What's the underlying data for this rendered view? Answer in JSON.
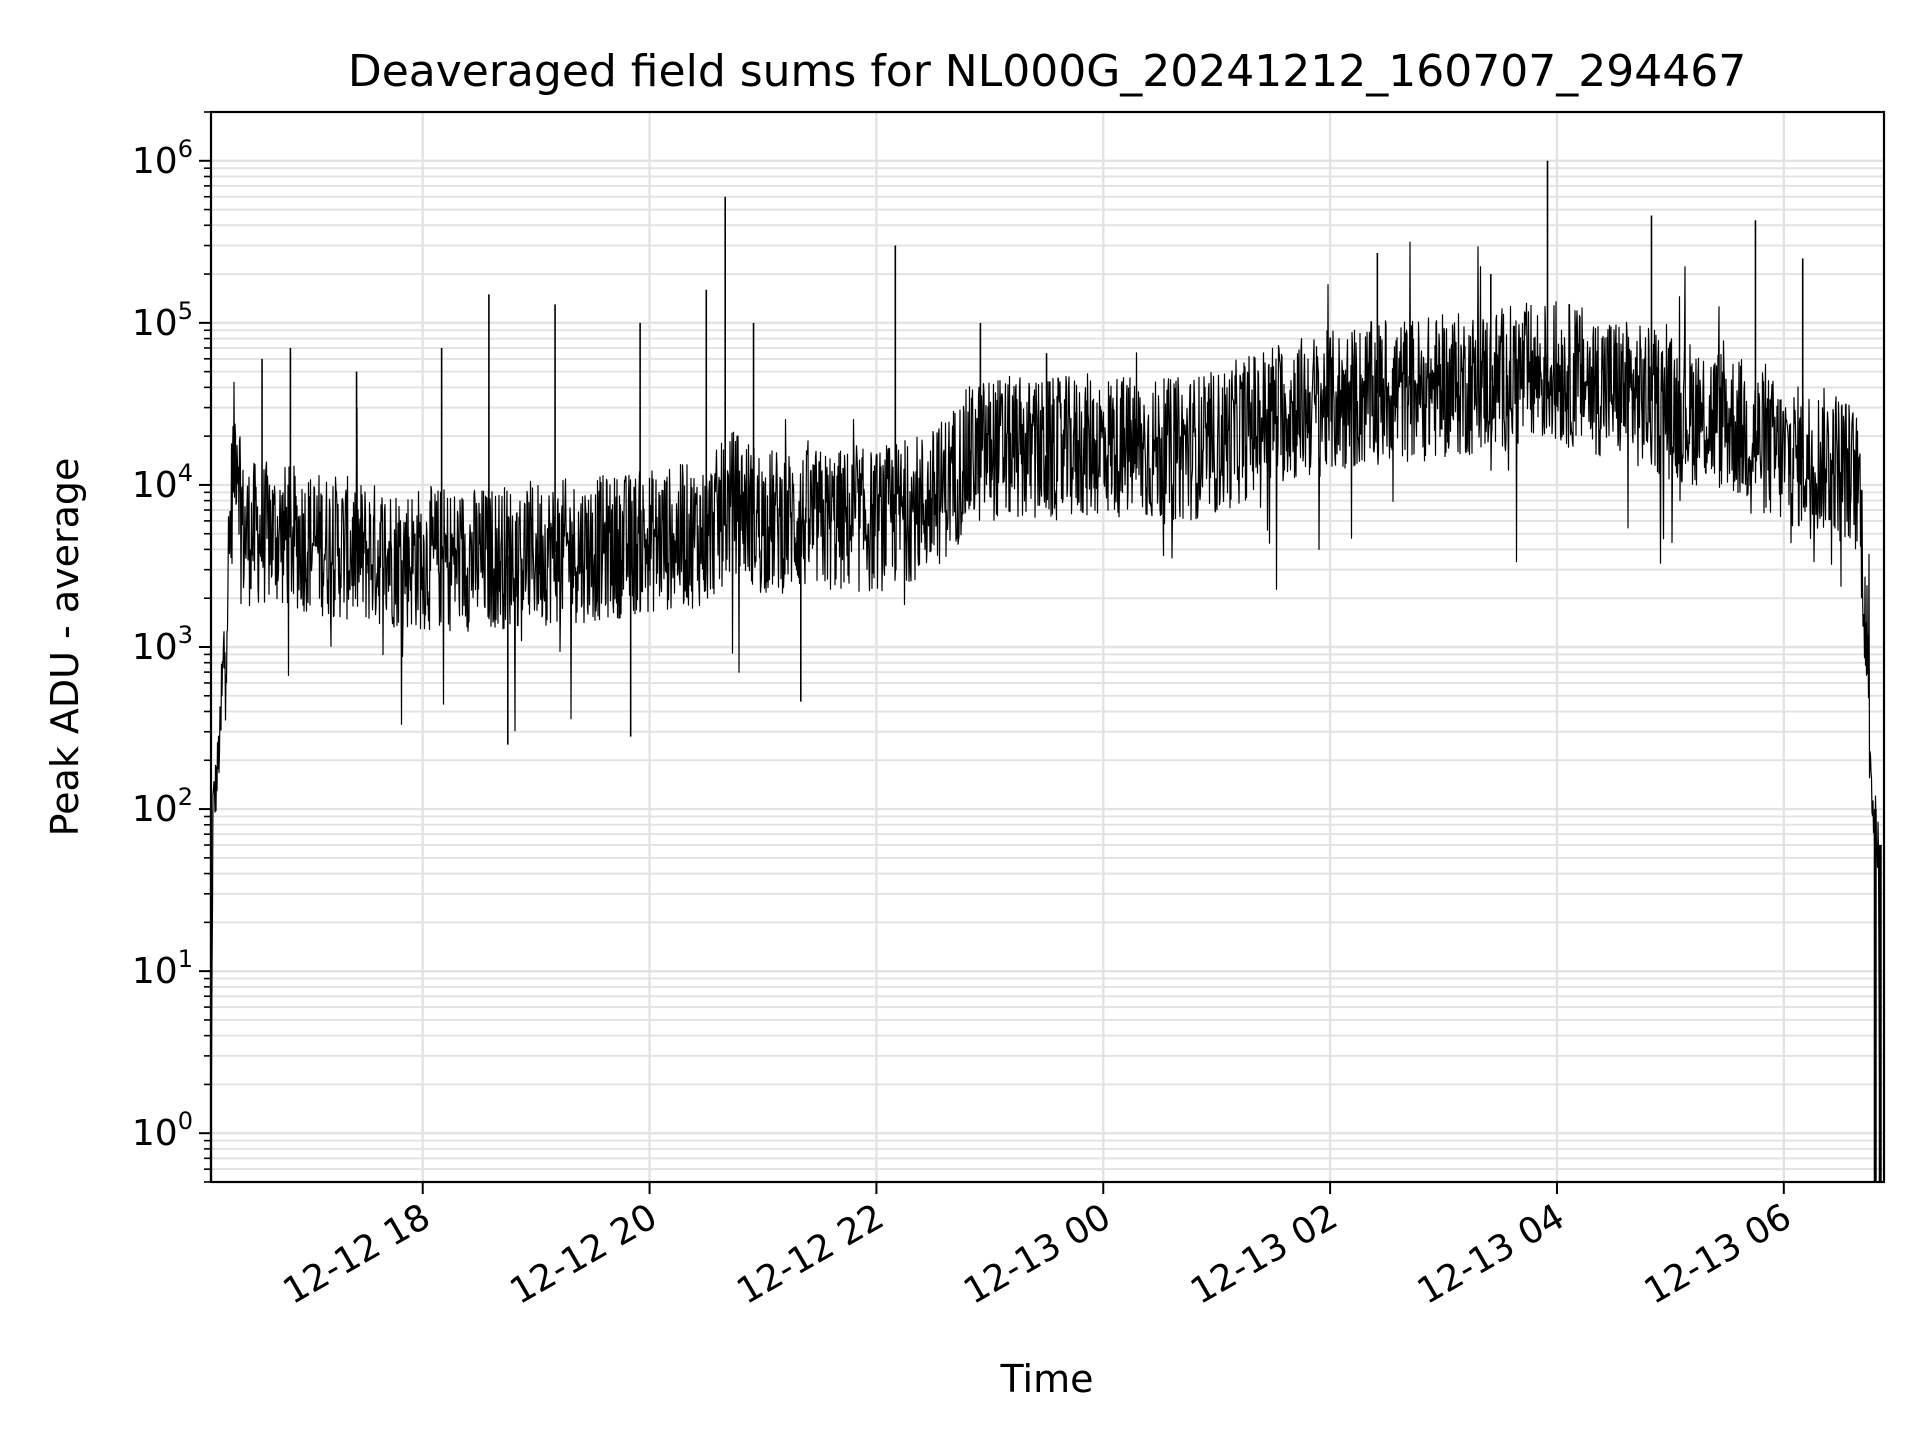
{
  "chart_data": {
    "type": "line",
    "title": "Deaveraged field sums for NL000G_20241212_160707_294467",
    "xlabel": "Time",
    "ylabel": "Peak ADU - average",
    "yscale": "log",
    "xlim": [
      "2024-12-12 16:08",
      "2024-12-13 06:53"
    ],
    "ylim": [
      0.5,
      2000000
    ],
    "grid": true,
    "line_color": "#000000",
    "x_ticks": [
      {
        "t": "2024-12-12 18:00",
        "label": "12-12 18"
      },
      {
        "t": "2024-12-12 20:00",
        "label": "12-12 20"
      },
      {
        "t": "2024-12-12 22:00",
        "label": "12-12 22"
      },
      {
        "t": "2024-12-13 00:00",
        "label": "12-13 00"
      },
      {
        "t": "2024-12-13 02:00",
        "label": "12-13 02"
      },
      {
        "t": "2024-12-13 04:00",
        "label": "12-13 04"
      },
      {
        "t": "2024-12-13 06:00",
        "label": "12-13 06"
      }
    ],
    "y_ticks": [
      {
        "value": 1,
        "base": "10",
        "exp": "0"
      },
      {
        "value": 10,
        "base": "10",
        "exp": "1"
      },
      {
        "value": 100,
        "base": "10",
        "exp": "2"
      },
      {
        "value": 1000,
        "base": "10",
        "exp": "3"
      },
      {
        "value": 10000,
        "base": "10",
        "exp": "4"
      },
      {
        "value": 100000,
        "base": "10",
        "exp": "5"
      },
      {
        "value": 1000000,
        "base": "10",
        "exp": "6"
      }
    ],
    "series": [
      {
        "points": [
          [
            "2024-12-12 16:08",
            0.5
          ],
          [
            "2024-12-12 16:09",
            100
          ],
          [
            "2024-12-12 16:11",
            150
          ],
          [
            "2024-12-12 16:13",
            300
          ],
          [
            "2024-12-12 16:16",
            1500
          ],
          [
            "2024-12-12 16:20",
            15000
          ],
          [
            "2024-12-12 16:22",
            20000
          ],
          [
            "2024-12-12 16:25",
            5000
          ],
          [
            "2024-12-12 16:40",
            5000
          ],
          [
            "2024-12-12 17:00",
            4500
          ],
          [
            "2024-12-12 17:30",
            3800
          ],
          [
            "2024-12-12 18:00",
            3500
          ],
          [
            "2024-12-12 18:30",
            3500
          ],
          [
            "2024-12-12 19:00",
            3800
          ],
          [
            "2024-12-12 19:30",
            4000
          ],
          [
            "2024-12-12 20:00",
            4500
          ],
          [
            "2024-12-12 20:30",
            5000
          ],
          [
            "2024-12-12 20:45",
            8000
          ],
          [
            "2024-12-12 21:00",
            6000
          ],
          [
            "2024-12-12 21:30",
            6000
          ],
          [
            "2024-12-12 22:00",
            6000
          ],
          [
            "2024-12-12 22:30",
            8000
          ],
          [
            "2024-12-12 22:50",
            15000
          ],
          [
            "2024-12-12 23:00",
            17000
          ],
          [
            "2024-12-12 23:30",
            16000
          ],
          [
            "2024-12-13 00:00",
            18000
          ],
          [
            "2024-12-13 00:30",
            16000
          ],
          [
            "2024-12-13 01:00",
            18000
          ],
          [
            "2024-12-13 01:30",
            28000
          ],
          [
            "2024-12-13 02:00",
            32000
          ],
          [
            "2024-12-13 02:30",
            38000
          ],
          [
            "2024-12-13 03:00",
            40000
          ],
          [
            "2024-12-13 03:30",
            45000
          ],
          [
            "2024-12-13 04:00",
            50000
          ],
          [
            "2024-12-13 04:30",
            40000
          ],
          [
            "2024-12-13 05:00",
            30000
          ],
          [
            "2024-12-13 05:30",
            25000
          ],
          [
            "2024-12-13 06:00",
            15000
          ],
          [
            "2024-12-13 06:30",
            14000
          ],
          [
            "2024-12-13 06:40",
            10000
          ],
          [
            "2024-12-13 06:44",
            1000
          ],
          [
            "2024-12-13 06:47",
            100
          ],
          [
            "2024-12-13 06:50",
            60
          ],
          [
            "2024-12-13 06:51",
            0.5
          ]
        ],
        "spikes": [
          [
            "2024-12-12 16:35",
            60000
          ],
          [
            "2024-12-12 16:50",
            70000
          ],
          [
            "2024-12-12 17:25",
            50000
          ],
          [
            "2024-12-12 18:10",
            70000
          ],
          [
            "2024-12-12 18:35",
            150000
          ],
          [
            "2024-12-12 18:45",
            250
          ],
          [
            "2024-12-12 19:10",
            130000
          ],
          [
            "2024-12-12 19:50",
            280
          ],
          [
            "2024-12-12 19:55",
            100000
          ],
          [
            "2024-12-12 20:30",
            160000
          ],
          [
            "2024-12-12 20:40",
            600000
          ],
          [
            "2024-12-12 20:55",
            100000
          ],
          [
            "2024-12-12 21:20",
            460
          ],
          [
            "2024-12-12 22:10",
            300000
          ],
          [
            "2024-12-12 22:55",
            100000
          ],
          [
            "2024-12-12 23:30",
            65000
          ],
          [
            "2024-12-13 02:25",
            270000
          ],
          [
            "2024-12-13 03:25",
            200000
          ],
          [
            "2024-12-13 03:55",
            1000000
          ],
          [
            "2024-12-13 04:50",
            460000
          ],
          [
            "2024-12-13 05:45",
            430000
          ],
          [
            "2024-12-13 06:10",
            250000
          ]
        ]
      }
    ]
  }
}
